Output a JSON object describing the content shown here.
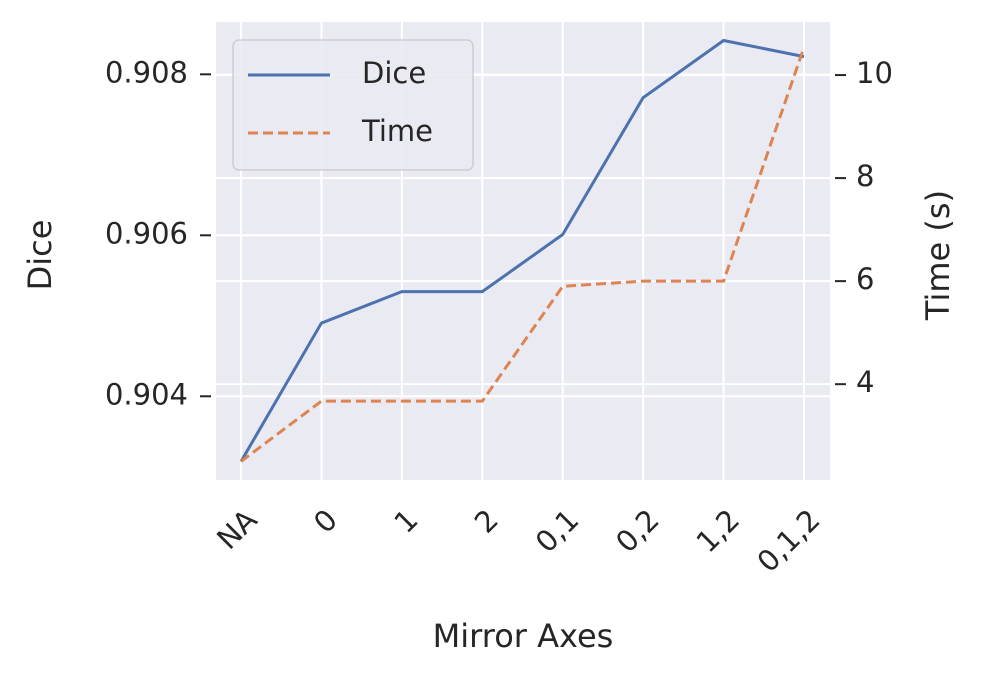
{
  "chart_data": {
    "type": "line",
    "x_label": "Mirror Axes",
    "y_label": "Dice",
    "y2_label": "Time (s)",
    "categories": [
      "NA",
      "0",
      "1",
      "2",
      "0,1",
      "0,2",
      "1,2",
      "0,1,2"
    ],
    "series": [
      {
        "name": "Dice",
        "color": "#4c72b0",
        "dash": "solid",
        "values": [
          0.90319,
          0.90491,
          0.9053,
          0.9053,
          0.90601,
          0.90771,
          0.90842,
          0.90822
        ]
      },
      {
        "name": "Time",
        "color": "#dd8452",
        "dash": "dashed",
        "axis": "y2",
        "values": [
          2.5,
          3.67,
          3.67,
          3.67,
          5.9,
          6.0,
          6.0,
          10.54
        ]
      }
    ],
    "ylim": [
      0.90296,
      0.90865
    ],
    "yticks": [
      0.904,
      0.906,
      0.908
    ],
    "y2lim": [
      2.14,
      11.03
    ],
    "y2ticks": [
      4,
      6,
      8,
      10
    ],
    "grid": true,
    "legend": "upper left"
  }
}
